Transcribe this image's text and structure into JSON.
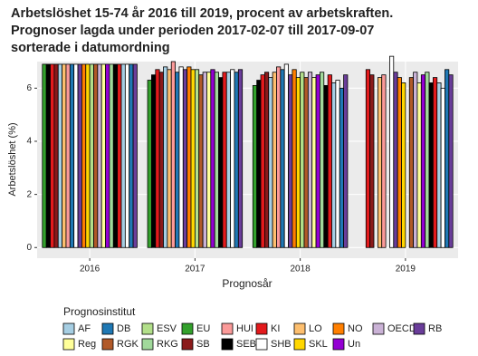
{
  "chart_data": {
    "type": "bar",
    "title": [
      "Arbetslöshet 15-74 år 2016 till 2019, procent av arbetskraften.",
      "Prognoser lagda under perioden 2017-02-07 till 2017-09-07",
      "sorterade i datumordning"
    ],
    "x_label": "Prognosår",
    "y_label": "Arbetslöshet (%)",
    "legend_title": "Prognosinstitut",
    "categories": [
      "2016",
      "2017",
      "2018",
      "2019"
    ],
    "ylim": [
      -0.4,
      7.0
    ],
    "yticks": [
      0,
      2,
      4,
      6
    ],
    "grid": true,
    "legend": [
      {
        "name": "AF",
        "color": "#a6cee3"
      },
      {
        "name": "DB",
        "color": "#1f78b4"
      },
      {
        "name": "ESV",
        "color": "#b2df8a"
      },
      {
        "name": "EU",
        "color": "#33a02c"
      },
      {
        "name": "HUI",
        "color": "#fb9a99"
      },
      {
        "name": "KI",
        "color": "#e31a1c"
      },
      {
        "name": "LO",
        "color": "#fdbf6f"
      },
      {
        "name": "NO",
        "color": "#ff7f00"
      },
      {
        "name": "OECD",
        "color": "#cab2d6"
      },
      {
        "name": "RB",
        "color": "#6a3d9a"
      },
      {
        "name": "Reg",
        "color": "#ffff99"
      },
      {
        "name": "RGK",
        "color": "#b15928"
      },
      {
        "name": "RKG",
        "color": "#a1d99b"
      },
      {
        "name": "SB",
        "color": "#8b1a1a"
      },
      {
        "name": "SEB",
        "color": "#000000"
      },
      {
        "name": "SHB",
        "color": "#ffffff"
      },
      {
        "name": "SKL",
        "color": "#ffd700"
      },
      {
        "name": "Un",
        "color": "#9400d3"
      }
    ],
    "forecasts": [
      {
        "institute": "EU",
        "values": [
          6.9,
          6.3,
          6.1,
          null
        ]
      },
      {
        "institute": "SEB",
        "values": [
          6.9,
          6.5,
          6.3,
          null
        ]
      },
      {
        "institute": "KI",
        "values": [
          6.9,
          6.7,
          6.5,
          6.7
        ]
      },
      {
        "institute": "SB",
        "values": [
          6.9,
          6.6,
          6.6,
          6.5
        ]
      },
      {
        "institute": "AF",
        "values": [
          6.9,
          6.8,
          6.4,
          null
        ]
      },
      {
        "institute": "LO",
        "values": [
          6.9,
          6.7,
          6.6,
          6.4
        ]
      },
      {
        "institute": "HUI",
        "values": [
          6.9,
          7.0,
          6.8,
          6.5
        ]
      },
      {
        "institute": "DB",
        "values": [
          6.9,
          6.6,
          6.7,
          null
        ]
      },
      {
        "institute": "SHB",
        "values": [
          6.9,
          6.8,
          6.9,
          7.2
        ]
      },
      {
        "institute": "RB",
        "values": [
          6.9,
          6.7,
          6.5,
          6.6
        ]
      },
      {
        "institute": "NO",
        "values": [
          6.9,
          6.8,
          6.7,
          6.4
        ]
      },
      {
        "institute": "SKL",
        "values": [
          6.9,
          6.7,
          6.4,
          6.2
        ]
      },
      {
        "institute": "ESV",
        "values": [
          6.9,
          6.7,
          6.6,
          null
        ]
      },
      {
        "institute": "RGK",
        "values": [
          6.9,
          6.5,
          6.4,
          6.4
        ]
      },
      {
        "institute": "OECD",
        "values": [
          6.9,
          6.6,
          6.6,
          6.6
        ]
      },
      {
        "institute": "Reg",
        "values": [
          6.9,
          6.6,
          6.4,
          6.2
        ]
      },
      {
        "institute": "Un",
        "values": [
          6.9,
          6.7,
          6.5,
          6.5
        ]
      },
      {
        "institute": "RKG",
        "values": [
          6.9,
          6.6,
          6.6,
          6.6
        ]
      },
      {
        "institute": "SEB",
        "values": [
          6.9,
          6.4,
          6.1,
          6.2
        ]
      },
      {
        "institute": "KI",
        "values": [
          6.9,
          6.6,
          6.5,
          6.4
        ]
      },
      {
        "institute": "AF",
        "values": [
          6.9,
          6.6,
          6.2,
          6.2
        ]
      },
      {
        "institute": "SHB",
        "values": [
          6.9,
          6.7,
          6.3,
          6.0
        ]
      },
      {
        "institute": "DB",
        "values": [
          6.9,
          6.6,
          6.0,
          6.7
        ]
      },
      {
        "institute": "RB",
        "values": [
          6.9,
          6.7,
          6.5,
          6.5
        ]
      }
    ]
  }
}
